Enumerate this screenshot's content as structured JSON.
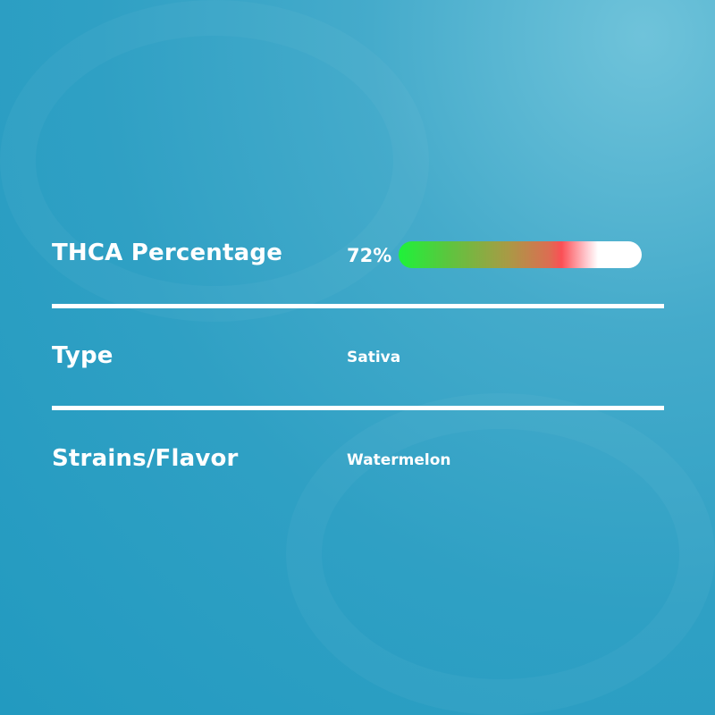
{
  "rows": [
    {
      "label": "THCA Percentage",
      "value": "72%",
      "percent": 72
    },
    {
      "label": "Type",
      "value": "Sativa"
    },
    {
      "label": "Strains/Flavor",
      "value": "Watermelon"
    }
  ],
  "colors": {
    "background": "#2fa0c4",
    "bar_start": "#1ef23a",
    "bar_mid": "#fb4f55",
    "bar_end": "#ffffff"
  }
}
